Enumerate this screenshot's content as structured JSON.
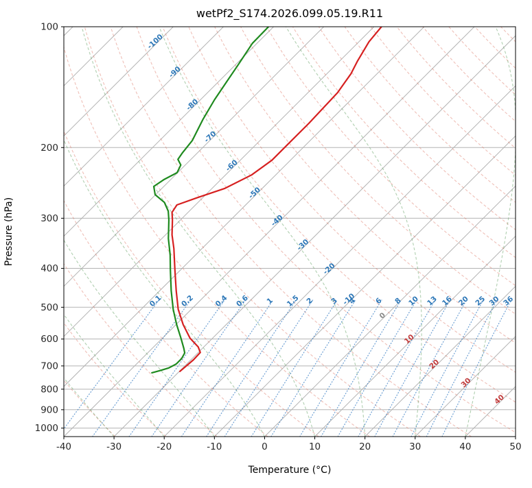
{
  "chart_data": {
    "type": "line",
    "subtype": "skew-t-log-p-sounding",
    "title": "wetPf2_S174.2026.099.05.19.R11",
    "xlabel": "Temperature (°C)",
    "ylabel": "Pressure (hPa)",
    "x_range_c": [
      -40,
      50
    ],
    "p_range_hpa": [
      100,
      1050
    ],
    "x_ticks": [
      -40,
      -30,
      -20,
      -10,
      0,
      10,
      20,
      30,
      40,
      50
    ],
    "p_ticks": [
      100,
      200,
      300,
      400,
      500,
      600,
      700,
      800,
      900,
      1000
    ],
    "grid": true,
    "skew_deg": 45,
    "isotherms_c": {
      "start": -120,
      "end": 50,
      "step": 10
    },
    "isotherm_labels": [
      {
        "t": -100,
        "p": 110
      },
      {
        "t": -90,
        "p": 131
      },
      {
        "t": -80,
        "p": 158
      },
      {
        "t": -70,
        "p": 190
      },
      {
        "t": -60,
        "p": 224
      },
      {
        "t": -50,
        "p": 262
      },
      {
        "t": -40,
        "p": 307
      },
      {
        "t": -30,
        "p": 353
      },
      {
        "t": -20,
        "p": 405
      },
      {
        "t": -10,
        "p": 482
      },
      {
        "t": 0,
        "p": 530
      },
      {
        "t": 10,
        "p": 606
      },
      {
        "t": 20,
        "p": 700
      },
      {
        "t": 30,
        "p": 778
      },
      {
        "t": 40,
        "p": 857
      }
    ],
    "dry_adiabats_k": {
      "start": 230,
      "end": 460,
      "step": 10
    },
    "moist_adiabats_start_c": [
      -40,
      -30,
      -20,
      -10,
      0,
      10,
      20,
      30,
      40,
      50
    ],
    "mixing_ratios_g_kg": [
      0.1,
      0.2,
      0.4,
      0.6,
      1,
      1.5,
      2,
      3,
      4,
      6,
      8,
      10,
      13,
      16,
      20,
      25,
      30,
      36
    ],
    "mixing_label_pressure": 487,
    "mixing_line_top_pressure": 480,
    "colors": {
      "temperature": "#d62020",
      "dewpoint": "#1e8a1e",
      "grid": "#b3b3b3",
      "dry_adiabat": "#e08070",
      "moist_adiabat": "#70a870",
      "mixing_ratio": "#3b7fc4",
      "label_blue": "#2e78b8",
      "label_red": "#c23b3b",
      "label_gray": "#8a8a8a",
      "spine": "#000000"
    },
    "series": [
      {
        "name": "temperature",
        "color": "#d62020",
        "points_p_t": [
          [
            100,
            -58.5
          ],
          [
            109,
            -58.0
          ],
          [
            122,
            -56.4
          ],
          [
            131,
            -55.2
          ],
          [
            146,
            -54.1
          ],
          [
            174,
            -53.7
          ],
          [
            195,
            -53.7
          ],
          [
            215,
            -53.7
          ],
          [
            234,
            -54.8
          ],
          [
            253,
            -57.5
          ],
          [
            267,
            -61.2
          ],
          [
            278,
            -63.7
          ],
          [
            290,
            -63.2
          ],
          [
            303,
            -61.6
          ],
          [
            330,
            -58.7
          ],
          [
            357,
            -55.6
          ],
          [
            404,
            -51.1
          ],
          [
            455,
            -46.7
          ],
          [
            506,
            -42.6
          ],
          [
            552,
            -38.6
          ],
          [
            597,
            -34.5
          ],
          [
            628,
            -31.1
          ],
          [
            648,
            -29.6
          ],
          [
            676,
            -29.5
          ],
          [
            700,
            -29.7
          ],
          [
            722,
            -29.9
          ]
        ]
      },
      {
        "name": "dewpoint",
        "color": "#1e8a1e",
        "points_p_t": [
          [
            100,
            -81.0
          ],
          [
            110,
            -80.9
          ],
          [
            125,
            -79.4
          ],
          [
            138,
            -78.3
          ],
          [
            152,
            -77.2
          ],
          [
            170,
            -75.6
          ],
          [
            192,
            -73.5
          ],
          [
            206,
            -73.0
          ],
          [
            214,
            -72.6
          ],
          [
            221,
            -70.9
          ],
          [
            231,
            -70.1
          ],
          [
            240,
            -71.3
          ],
          [
            250,
            -72.0
          ],
          [
            262,
            -70.1
          ],
          [
            274,
            -66.7
          ],
          [
            288,
            -64.2
          ],
          [
            303,
            -62.3
          ],
          [
            337,
            -58.7
          ],
          [
            371,
            -55.0
          ],
          [
            404,
            -52.0
          ],
          [
            455,
            -47.7
          ],
          [
            506,
            -43.6
          ],
          [
            552,
            -39.9
          ],
          [
            597,
            -36.3
          ],
          [
            633,
            -33.7
          ],
          [
            650,
            -32.6
          ],
          [
            671,
            -32.1
          ],
          [
            692,
            -32.1
          ],
          [
            708,
            -32.8
          ],
          [
            719,
            -34.0
          ],
          [
            728,
            -35.2
          ]
        ]
      }
    ]
  }
}
